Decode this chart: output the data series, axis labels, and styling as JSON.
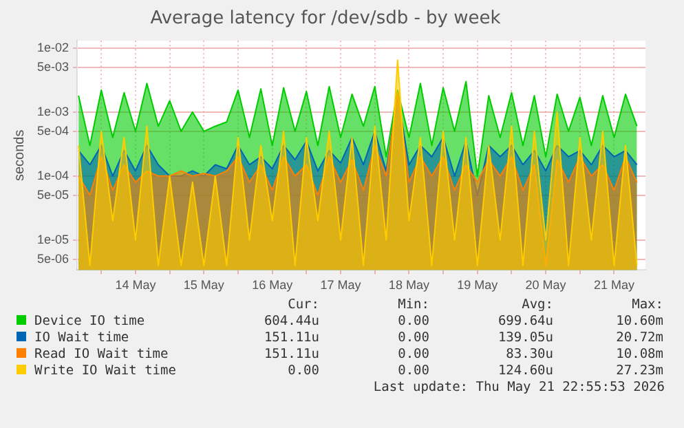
{
  "chart_data": {
    "type": "area",
    "title": "Average latency for /dev/sdb - by week",
    "ylabel": "seconds",
    "log": "y",
    "grid": true,
    "legend": "bottom",
    "marker": "none",
    "x": [
      "2026-05-13T16:00",
      "2026-05-13T20:00",
      "2026-05-14T00:00",
      "2026-05-14T04:00",
      "2026-05-14T08:00",
      "2026-05-14T12:00",
      "2026-05-14T16:00",
      "2026-05-14T20:00",
      "2026-05-15T00:00",
      "2026-05-15T04:00",
      "2026-05-15T08:00",
      "2026-05-15T12:00",
      "2026-05-15T16:00",
      "2026-05-15T20:00",
      "2026-05-16T00:00",
      "2026-05-16T04:00",
      "2026-05-16T08:00",
      "2026-05-16T12:00",
      "2026-05-16T16:00",
      "2026-05-16T20:00",
      "2026-05-17T00:00",
      "2026-05-17T04:00",
      "2026-05-17T08:00",
      "2026-05-17T12:00",
      "2026-05-17T16:00",
      "2026-05-17T20:00",
      "2026-05-18T00:00",
      "2026-05-18T04:00",
      "2026-05-18T08:00",
      "2026-05-18T12:00",
      "2026-05-18T16:00",
      "2026-05-18T20:00",
      "2026-05-19T00:00",
      "2026-05-19T04:00",
      "2026-05-19T08:00",
      "2026-05-19T12:00",
      "2026-05-19T16:00",
      "2026-05-19T20:00",
      "2026-05-20T00:00",
      "2026-05-20T04:00",
      "2026-05-20T08:00",
      "2026-05-20T12:00",
      "2026-05-20T16:00",
      "2026-05-20T20:00",
      "2026-05-21T00:00",
      "2026-05-21T04:00",
      "2026-05-21T08:00",
      "2026-05-21T12:00",
      "2026-05-21T16:00",
      "2026-05-21T20:00"
    ],
    "xlim": [
      "2026-05-13T15:30",
      "2026-05-21T23:00"
    ],
    "xticks": [
      {
        "value": "2026-05-14T00:00",
        "label": null
      },
      {
        "value": "2026-05-14T12:00",
        "label": "14 May"
      },
      {
        "value": "2026-05-15T00:00",
        "label": null
      },
      {
        "value": "2026-05-15T12:00",
        "label": "15 May"
      },
      {
        "value": "2026-05-16T00:00",
        "label": null
      },
      {
        "value": "2026-05-16T12:00",
        "label": "16 May"
      },
      {
        "value": "2026-05-17T00:00",
        "label": null
      },
      {
        "value": "2026-05-17T12:00",
        "label": "17 May"
      },
      {
        "value": "2026-05-18T00:00",
        "label": null
      },
      {
        "value": "2026-05-18T12:00",
        "label": "18 May"
      },
      {
        "value": "2026-05-19T00:00",
        "label": null
      },
      {
        "value": "2026-05-19T12:00",
        "label": "19 May"
      },
      {
        "value": "2026-05-20T00:00",
        "label": null
      },
      {
        "value": "2026-05-20T12:00",
        "label": "20 May"
      },
      {
        "value": "2026-05-21T00:00",
        "label": null
      },
      {
        "value": "2026-05-21T12:00",
        "label": "21 May"
      }
    ],
    "ylim": [
      3.4e-06,
      0.013
    ],
    "yticks": [
      {
        "value": 0.01,
        "label": "1e-02"
      },
      {
        "value": 0.005,
        "label": "5e-03"
      },
      {
        "value": 0.001,
        "label": "1e-03"
      },
      {
        "value": 0.0005,
        "label": "5e-04"
      },
      {
        "value": 0.0001,
        "label": "1e-04"
      },
      {
        "value": 5e-05,
        "label": "5e-05"
      },
      {
        "value": 1e-05,
        "label": "1e-05"
      },
      {
        "value": 5e-06,
        "label": "5e-06"
      }
    ],
    "series": [
      {
        "name": "Device IO time",
        "color": "#00cc00",
        "values": [
          0.0018,
          0.0003,
          0.0022,
          0.0004,
          0.002,
          0.0005,
          0.0028,
          0.0006,
          0.0015,
          0.0005,
          0.001,
          0.0005,
          0.0006,
          0.0007,
          0.0022,
          0.0004,
          0.0023,
          0.0003,
          0.0024,
          0.0005,
          0.0021,
          0.0003,
          0.0025,
          0.0004,
          0.0019,
          0.0006,
          0.0025,
          0.0002,
          0.0022,
          0.0004,
          0.0028,
          0.0003,
          0.0024,
          0.0005,
          0.003,
          0.0001,
          0.0018,
          0.0004,
          0.002,
          0.0003,
          0.0018,
          0.0002,
          0.0019,
          0.0005,
          0.0017,
          0.0003,
          0.0018,
          0.0004,
          0.0019,
          0.0006
        ]
      },
      {
        "name": "IO Wait time",
        "color": "#0066b3",
        "values": [
          0.00025,
          0.00015,
          0.0003,
          0.0001,
          0.00025,
          0.00012,
          0.0003,
          0.00015,
          0.0001,
          0.0001,
          0.00012,
          0.0001,
          0.00015,
          0.00013,
          0.0003,
          0.00015,
          0.0002,
          0.00013,
          0.0003,
          0.00018,
          0.00035,
          0.00012,
          0.00025,
          0.00016,
          0.0004,
          0.00015,
          0.0005,
          0.00012,
          0.0018,
          0.00015,
          0.0003,
          0.0002,
          0.0004,
          0.0001,
          0.00035,
          5e-05,
          0.0003,
          0.0002,
          0.0003,
          0.00015,
          0.00025,
          0.00012,
          0.0003,
          0.0002,
          0.00025,
          0.00015,
          0.0003,
          0.0002,
          0.00025,
          0.00015
        ]
      },
      {
        "name": "Read IO Wait time",
        "color": "#ff8000",
        "values": [
          0.0001,
          5e-05,
          0.0002,
          6e-05,
          0.00015,
          8e-05,
          0.00012,
          0.0001,
          0.0001,
          0.00012,
          0.0001,
          0.00011,
          0.0001,
          0.00012,
          0.0002,
          8e-05,
          0.00015,
          6e-05,
          0.0002,
          0.0001,
          0.00015,
          5e-05,
          0.0002,
          8e-05,
          0.00018,
          6e-05,
          0.0003,
          0.0001,
          0.002,
          8e-05,
          0.0002,
          0.0001,
          0.0002,
          6e-05,
          0.00015,
          8e-05,
          0.00018,
          0.0001,
          0.0002,
          6e-05,
          0.00015,
          4e-06,
          0.00018,
          8e-05,
          0.0002,
          0.0001,
          0.00015,
          6e-05,
          0.0002,
          8e-05
        ]
      },
      {
        "name": "Write IO Wait time",
        "color": "#ffcc00",
        "values": [
          0.0003,
          4e-06,
          0.0005,
          2e-05,
          0.0004,
          1e-05,
          0.0006,
          4e-06,
          0.0001,
          4e-06,
          8e-05,
          4e-06,
          0.0001,
          4e-06,
          0.0004,
          1e-05,
          0.0003,
          2e-05,
          0.0005,
          4e-06,
          0.0004,
          2e-05,
          0.0005,
          1e-05,
          0.0004,
          4e-06,
          0.0006,
          1e-05,
          0.0065,
          2e-05,
          0.0004,
          4e-06,
          0.0005,
          1e-05,
          0.0004,
          4e-06,
          0.0003,
          1e-05,
          0.0006,
          4e-06,
          0.0005,
          1e-05,
          0.001,
          4e-06,
          0.0004,
          1e-05,
          0.0005,
          4e-06,
          0.0003,
          4e-06
        ]
      }
    ],
    "annotations": [
      "Cur:",
      "Min:",
      "Avg:",
      "Max:",
      "604.44u",
      "0.00",
      "699.64u",
      "10.60m",
      "151.11u",
      "0.00",
      "139.05u",
      "20.72m",
      "151.11u",
      "0.00",
      "83.30u",
      "10.08m",
      "0.00",
      "0.00",
      "124.60u",
      "27.23m",
      "Last update: Thu May 21 22:55:53 2026"
    ]
  }
}
